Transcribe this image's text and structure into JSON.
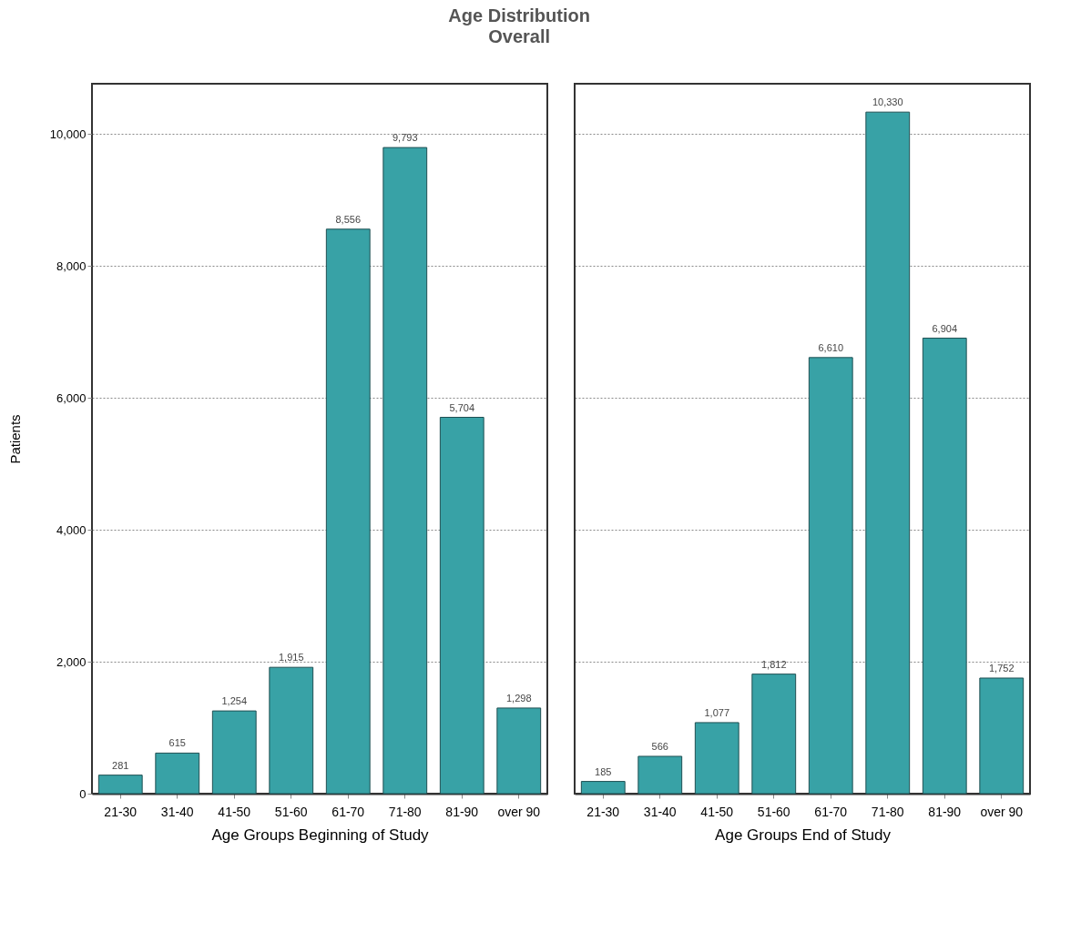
{
  "chart_data": [
    {
      "type": "bar",
      "title": "Age Distribution",
      "subtitle": "Overall",
      "xlabel": "Age Groups Beginning of Study",
      "ylabel": "Patients",
      "categories": [
        "21-30",
        "31-40",
        "41-50",
        "51-60",
        "61-70",
        "71-80",
        "81-90",
        "over 90"
      ],
      "values": [
        281,
        615,
        1254,
        1915,
        8556,
        9793,
        5704,
        1298
      ],
      "color": "#38a2a6",
      "value_labels": [
        "281",
        "615",
        "1,254",
        "1,915",
        "8,556",
        "9,793",
        "5,704",
        "1,298"
      ],
      "ylim": [
        0,
        10760
      ],
      "yticks": [
        0,
        {
          "value": 2000,
          "label": "2,000"
        },
        {
          "value": 4000,
          "label": "4,000"
        },
        {
          "value": 6000,
          "label": "6,000"
        },
        {
          "value": 8000,
          "label": "8,000"
        },
        {
          "value": 10000,
          "label": "10,000"
        }
      ],
      "grid": "y"
    },
    {
      "type": "bar",
      "xlabel": "Age Groups End of Study",
      "categories": [
        "21-30",
        "31-40",
        "41-50",
        "51-60",
        "61-70",
        "71-80",
        "81-90",
        "over 90"
      ],
      "values": [
        185,
        566,
        1077,
        1812,
        6610,
        10330,
        6904,
        1752
      ],
      "color": "#38a2a6",
      "value_labels": [
        "185",
        "566",
        "1,077",
        "1,812",
        "6,610",
        "10,330",
        "6,904",
        "1,752"
      ],
      "ylim": [
        0,
        10760
      ],
      "yticks": [
        0,
        2000,
        4000,
        6000,
        8000,
        10000
      ],
      "grid": "y",
      "tick_labels": "x"
    }
  ]
}
